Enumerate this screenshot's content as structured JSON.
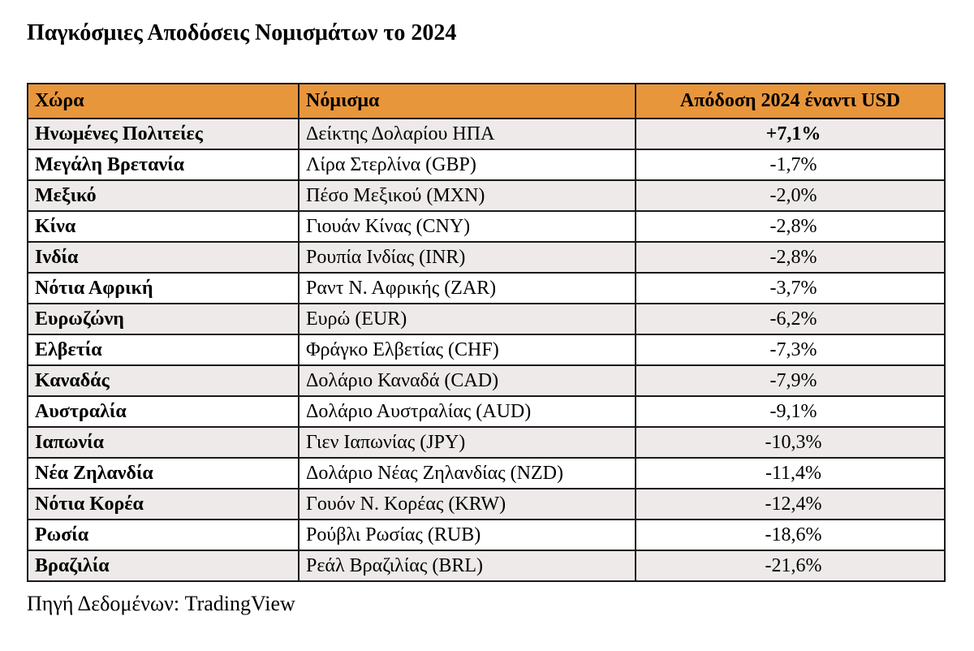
{
  "title": "Παγκόσμιες Αποδόσεις Νομισμάτων το 2024",
  "source": "Πηγή Δεδομένων: TradingView",
  "colors": {
    "header_bg": "#e8963c",
    "row_bg": "#ffffff",
    "row_alt_bg": "#edeae9",
    "border": "#1a1a1a",
    "text": "#000000"
  },
  "table": {
    "columns": [
      "Χώρα",
      "Νόμισμα",
      "Απόδοση 2024 έναντι USD"
    ],
    "rows": [
      {
        "country": "Ηνωμένες Πολιτείες",
        "currency": "Δείκτης Δολαρίου ΗΠΑ",
        "return": "+7,1%",
        "bold_return": true
      },
      {
        "country": "Μεγάλη Βρετανία",
        "currency": "Λίρα Στερλίνα (GBP)",
        "return": "-1,7%",
        "bold_return": false
      },
      {
        "country": "Μεξικό",
        "currency": "Πέσο Μεξικού (MXN)",
        "return": "-2,0%",
        "bold_return": false
      },
      {
        "country": "Κίνα",
        "currency": "Γιουάν Κίνας (CNY)",
        "return": "-2,8%",
        "bold_return": false
      },
      {
        "country": "Ινδία",
        "currency": "Ρουπία Ινδίας (INR)",
        "return": "-2,8%",
        "bold_return": false
      },
      {
        "country": "Νότια Αφρική",
        "currency": "Ραντ Ν. Αφρικής (ZAR)",
        "return": "-3,7%",
        "bold_return": false
      },
      {
        "country": "Ευρωζώνη",
        "currency": "Ευρώ (EUR)",
        "return": "-6,2%",
        "bold_return": false
      },
      {
        "country": "Ελβετία",
        "currency": "Φράγκο Ελβετίας (CHF)",
        "return": "-7,3%",
        "bold_return": false
      },
      {
        "country": "Καναδάς",
        "currency": "Δολάριο Καναδά (CAD)",
        "return": "-7,9%",
        "bold_return": false
      },
      {
        "country": "Αυστραλία",
        "currency": "Δολάριο Αυστραλίας (AUD)",
        "return": "-9,1%",
        "bold_return": false
      },
      {
        "country": "Ιαπωνία",
        "currency": "Γιεν Ιαπωνίας (JPY)",
        "return": "-10,3%",
        "bold_return": false
      },
      {
        "country": "Νέα Ζηλανδία",
        "currency": "Δολάριο Νέας Ζηλανδίας (NZD)",
        "return": "-11,4%",
        "bold_return": false
      },
      {
        "country": "Νότια Κορέα",
        "currency": "Γουόν Ν. Κορέας (KRW)",
        "return": "-12,4%",
        "bold_return": false
      },
      {
        "country": "Ρωσία",
        "currency": "Ρούβλι Ρωσίας (RUB)",
        "return": "-18,6%",
        "bold_return": false
      },
      {
        "country": "Βραζιλία",
        "currency": "Ρεάλ Βραζιλίας (BRL)",
        "return": "-21,6%",
        "bold_return": false
      }
    ]
  },
  "chart_data": {
    "type": "table",
    "title": "Παγκόσμιες Αποδόσεις Νομισμάτων το 2024",
    "columns": [
      "Χώρα",
      "Νόμισμα",
      "Απόδοση 2024 έναντι USD"
    ],
    "rows": [
      [
        "Ηνωμένες Πολιτείες",
        "Δείκτης Δολαρίου ΗΠΑ",
        "+7,1%"
      ],
      [
        "Μεγάλη Βρετανία",
        "Λίρα Στερλίνα (GBP)",
        "-1,7%"
      ],
      [
        "Μεξικό",
        "Πέσο Μεξικού (MXN)",
        "-2,0%"
      ],
      [
        "Κίνα",
        "Γιουάν Κίνας (CNY)",
        "-2,8%"
      ],
      [
        "Ινδία",
        "Ρουπία Ινδίας (INR)",
        "-2,8%"
      ],
      [
        "Νότια Αφρική",
        "Ραντ Ν. Αφρικής (ZAR)",
        "-3,7%"
      ],
      [
        "Ευρωζώνη",
        "Ευρώ (EUR)",
        "-6,2%"
      ],
      [
        "Ελβετία",
        "Φράγκο Ελβετίας (CHF)",
        "-7,3%"
      ],
      [
        "Καναδάς",
        "Δολάριο Καναδά (CAD)",
        "-7,9%"
      ],
      [
        "Αυστραλία",
        "Δολάριο Αυστραλίας (AUD)",
        "-9,1%"
      ],
      [
        "Ιαπωνία",
        "Γιεν Ιαπωνίας (JPY)",
        "-10,3%"
      ],
      [
        "Νέα Ζηλανδία",
        "Δολάριο Νέας Ζηλανδίας (NZD)",
        "-11,4%"
      ],
      [
        "Νότια Κορέα",
        "Γουόν Ν. Κορέας (KRW)",
        "-12,4%"
      ],
      [
        "Ρωσία",
        "Ρούβλι Ρωσίας (RUB)",
        "-18,6%"
      ],
      [
        "Βραζιλία",
        "Ρεάλ Βραζιλίας (BRL)",
        "-21,6%"
      ]
    ],
    "values_numeric_pct": [
      7.1,
      -1.7,
      -2.0,
      -2.8,
      -2.8,
      -3.7,
      -6.2,
      -7.3,
      -7.9,
      -9.1,
      -10.3,
      -11.4,
      -12.4,
      -18.6,
      -21.6
    ],
    "source": "Πηγή Δεδομένων: TradingView"
  }
}
